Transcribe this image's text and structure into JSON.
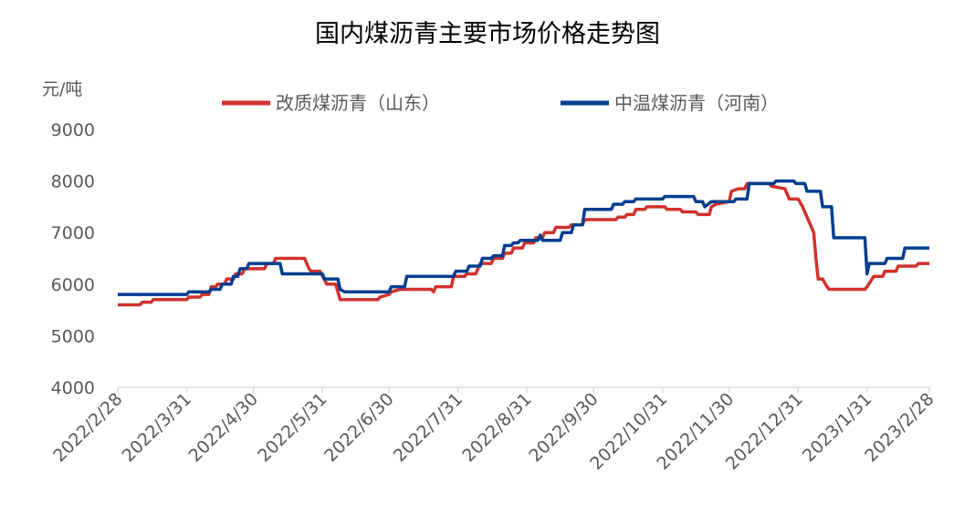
{
  "chart_data": {
    "type": "line",
    "title": "国内煤沥青主要市场价格走势图",
    "ylabel": "元/吨",
    "ylim": [
      4000,
      9000
    ],
    "yticks": [
      "4000",
      "5000",
      "6000",
      "7000",
      "8000",
      "9000"
    ],
    "xlim": [
      "2022-02-28",
      "2023-02-28"
    ],
    "xticks": [
      {
        "date": "2022-02-28",
        "label": "2022/2/28"
      },
      {
        "date": "2022-03-31",
        "label": "2022/3/31"
      },
      {
        "date": "2022-04-30",
        "label": "2022/4/30"
      },
      {
        "date": "2022-05-31",
        "label": "2022/5/31"
      },
      {
        "date": "2022-06-30",
        "label": "2022/6/30"
      },
      {
        "date": "2022-07-31",
        "label": "2022/7/31"
      },
      {
        "date": "2022-08-31",
        "label": "2022/8/31"
      },
      {
        "date": "2022-09-30",
        "label": "2022/9/30"
      },
      {
        "date": "2022-10-31",
        "label": "2022/10/31"
      },
      {
        "date": "2022-11-30",
        "label": "2022/11/30"
      },
      {
        "date": "2022-12-31",
        "label": "2022/12/31"
      },
      {
        "date": "2023-01-31",
        "label": "2023/1/31"
      },
      {
        "date": "2023-02-28",
        "label": "2023/2/28"
      }
    ],
    "grid": false,
    "legend_position": "top",
    "series": [
      {
        "name": "改质煤沥青（山东）",
        "color": "#d0312d",
        "points": [
          [
            "2022-02-28",
            5600
          ],
          [
            "2022-03-10",
            5600
          ],
          [
            "2022-03-11",
            5650
          ],
          [
            "2022-03-15",
            5650
          ],
          [
            "2022-03-16",
            5700
          ],
          [
            "2022-03-31",
            5700
          ],
          [
            "2022-04-01",
            5750
          ],
          [
            "2022-04-06",
            5750
          ],
          [
            "2022-04-07",
            5800
          ],
          [
            "2022-04-10",
            5800
          ],
          [
            "2022-04-11",
            5950
          ],
          [
            "2022-04-13",
            5950
          ],
          [
            "2022-04-14",
            6000
          ],
          [
            "2022-04-17",
            6000
          ],
          [
            "2022-04-18",
            6100
          ],
          [
            "2022-04-21",
            6100
          ],
          [
            "2022-04-22",
            6200
          ],
          [
            "2022-04-25",
            6200
          ],
          [
            "2022-04-26",
            6300
          ],
          [
            "2022-05-05",
            6300
          ],
          [
            "2022-05-06",
            6400
          ],
          [
            "2022-05-09",
            6400
          ],
          [
            "2022-05-10",
            6500
          ],
          [
            "2022-05-23",
            6500
          ],
          [
            "2022-05-24",
            6400
          ],
          [
            "2022-05-25",
            6300
          ],
          [
            "2022-05-26",
            6250
          ],
          [
            "2022-05-30",
            6250
          ],
          [
            "2022-06-02",
            6000
          ],
          [
            "2022-06-06",
            6000
          ],
          [
            "2022-06-07",
            5850
          ],
          [
            "2022-06-08",
            5700
          ],
          [
            "2022-06-25",
            5700
          ],
          [
            "2022-06-26",
            5750
          ],
          [
            "2022-06-30",
            5800
          ],
          [
            "2022-07-01",
            5850
          ],
          [
            "2022-07-05",
            5900
          ],
          [
            "2022-07-19",
            5900
          ],
          [
            "2022-07-20",
            5850
          ],
          [
            "2022-07-21",
            5950
          ],
          [
            "2022-07-28",
            5950
          ],
          [
            "2022-07-29",
            6150
          ],
          [
            "2022-08-03",
            6150
          ],
          [
            "2022-08-04",
            6200
          ],
          [
            "2022-08-08",
            6200
          ],
          [
            "2022-08-09",
            6300
          ],
          [
            "2022-08-10",
            6400
          ],
          [
            "2022-08-15",
            6400
          ],
          [
            "2022-08-16",
            6500
          ],
          [
            "2022-08-20",
            6500
          ],
          [
            "2022-08-21",
            6600
          ],
          [
            "2022-08-24",
            6600
          ],
          [
            "2022-08-25",
            6700
          ],
          [
            "2022-08-29",
            6700
          ],
          [
            "2022-08-30",
            6800
          ],
          [
            "2022-09-03",
            6800
          ],
          [
            "2022-09-04",
            6900
          ],
          [
            "2022-09-07",
            6900
          ],
          [
            "2022-09-08",
            7000
          ],
          [
            "2022-09-12",
            7000
          ],
          [
            "2022-09-13",
            7100
          ],
          [
            "2022-09-19",
            7100
          ],
          [
            "2022-09-20",
            7150
          ],
          [
            "2022-09-25",
            7150
          ],
          [
            "2022-09-26",
            7250
          ],
          [
            "2022-10-10",
            7250
          ],
          [
            "2022-10-11",
            7300
          ],
          [
            "2022-10-14",
            7300
          ],
          [
            "2022-10-15",
            7350
          ],
          [
            "2022-10-18",
            7350
          ],
          [
            "2022-10-19",
            7450
          ],
          [
            "2022-10-23",
            7450
          ],
          [
            "2022-10-24",
            7500
          ],
          [
            "2022-11-01",
            7500
          ],
          [
            "2022-11-02",
            7450
          ],
          [
            "2022-11-08",
            7450
          ],
          [
            "2022-11-09",
            7400
          ],
          [
            "2022-11-15",
            7400
          ],
          [
            "2022-11-16",
            7350
          ],
          [
            "2022-11-21",
            7350
          ],
          [
            "2022-11-22",
            7500
          ],
          [
            "2022-11-24",
            7550
          ],
          [
            "2022-11-30",
            7600
          ],
          [
            "2022-12-01",
            7800
          ],
          [
            "2022-12-04",
            7850
          ],
          [
            "2022-12-07",
            7850
          ],
          [
            "2022-12-08",
            7950
          ],
          [
            "2022-12-18",
            7950
          ],
          [
            "2022-12-19",
            7900
          ],
          [
            "2022-12-25",
            7850
          ],
          [
            "2022-12-27",
            7650
          ],
          [
            "2022-12-31",
            7650
          ],
          [
            "2023-01-02",
            7500
          ],
          [
            "2023-01-04",
            7300
          ],
          [
            "2023-01-07",
            7000
          ],
          [
            "2023-01-08",
            6500
          ],
          [
            "2023-01-09",
            6100
          ],
          [
            "2023-01-11",
            6100
          ],
          [
            "2023-01-13",
            5950
          ],
          [
            "2023-01-14",
            5900
          ],
          [
            "2023-01-30",
            5900
          ],
          [
            "2023-01-31",
            5950
          ],
          [
            "2023-02-03",
            6150
          ],
          [
            "2023-02-07",
            6150
          ],
          [
            "2023-02-08",
            6250
          ],
          [
            "2023-02-13",
            6250
          ],
          [
            "2023-02-14",
            6350
          ],
          [
            "2023-02-22",
            6350
          ],
          [
            "2023-02-23",
            6400
          ],
          [
            "2023-02-28",
            6400
          ]
        ]
      },
      {
        "name": "中温煤沥青（河南）",
        "color": "#003d8f",
        "points": [
          [
            "2022-02-28",
            5800
          ],
          [
            "2022-03-31",
            5800
          ],
          [
            "2022-04-01",
            5850
          ],
          [
            "2022-04-10",
            5850
          ],
          [
            "2022-04-11",
            5900
          ],
          [
            "2022-04-15",
            5900
          ],
          [
            "2022-04-16",
            6000
          ],
          [
            "2022-04-20",
            6000
          ],
          [
            "2022-04-21",
            6150
          ],
          [
            "2022-04-23",
            6150
          ],
          [
            "2022-04-24",
            6300
          ],
          [
            "2022-04-27",
            6300
          ],
          [
            "2022-04-28",
            6400
          ],
          [
            "2022-05-12",
            6400
          ],
          [
            "2022-05-13",
            6200
          ],
          [
            "2022-05-31",
            6200
          ],
          [
            "2022-06-01",
            6100
          ],
          [
            "2022-06-07",
            6100
          ],
          [
            "2022-06-08",
            5900
          ],
          [
            "2022-06-10",
            5850
          ],
          [
            "2022-06-30",
            5850
          ],
          [
            "2022-07-01",
            5950
          ],
          [
            "2022-07-07",
            5950
          ],
          [
            "2022-07-08",
            6150
          ],
          [
            "2022-07-29",
            6150
          ],
          [
            "2022-07-30",
            6250
          ],
          [
            "2022-08-04",
            6250
          ],
          [
            "2022-08-05",
            6350
          ],
          [
            "2022-08-10",
            6350
          ],
          [
            "2022-08-11",
            6500
          ],
          [
            "2022-08-15",
            6500
          ],
          [
            "2022-08-16",
            6550
          ],
          [
            "2022-08-20",
            6550
          ],
          [
            "2022-08-21",
            6750
          ],
          [
            "2022-08-24",
            6750
          ],
          [
            "2022-08-25",
            6800
          ],
          [
            "2022-08-27",
            6800
          ],
          [
            "2022-08-28",
            6850
          ],
          [
            "2022-09-05",
            6850
          ],
          [
            "2022-09-06",
            6950
          ],
          [
            "2022-09-07",
            6850
          ],
          [
            "2022-09-15",
            6850
          ],
          [
            "2022-09-16",
            7000
          ],
          [
            "2022-09-20",
            7000
          ],
          [
            "2022-09-21",
            7150
          ],
          [
            "2022-09-25",
            7150
          ],
          [
            "2022-09-26",
            7450
          ],
          [
            "2022-10-08",
            7450
          ],
          [
            "2022-10-09",
            7550
          ],
          [
            "2022-10-13",
            7550
          ],
          [
            "2022-10-14",
            7600
          ],
          [
            "2022-10-18",
            7600
          ],
          [
            "2022-10-19",
            7650
          ],
          [
            "2022-10-31",
            7650
          ],
          [
            "2022-11-01",
            7700
          ],
          [
            "2022-11-14",
            7700
          ],
          [
            "2022-11-15",
            7600
          ],
          [
            "2022-11-18",
            7600
          ],
          [
            "2022-11-19",
            7500
          ],
          [
            "2022-11-22",
            7600
          ],
          [
            "2022-12-02",
            7600
          ],
          [
            "2022-12-03",
            7650
          ],
          [
            "2022-12-08",
            7650
          ],
          [
            "2022-12-09",
            7950
          ],
          [
            "2022-12-20",
            7950
          ],
          [
            "2022-12-21",
            8000
          ],
          [
            "2022-12-29",
            8000
          ],
          [
            "2022-12-30",
            7950
          ],
          [
            "2023-01-03",
            7950
          ],
          [
            "2023-01-04",
            7800
          ],
          [
            "2023-01-10",
            7800
          ],
          [
            "2023-01-11",
            7500
          ],
          [
            "2023-01-15",
            7500
          ],
          [
            "2023-01-16",
            6900
          ],
          [
            "2023-01-30",
            6900
          ],
          [
            "2023-01-31",
            6200
          ],
          [
            "2023-02-01",
            6400
          ],
          [
            "2023-02-08",
            6400
          ],
          [
            "2023-02-09",
            6500
          ],
          [
            "2023-02-16",
            6500
          ],
          [
            "2023-02-17",
            6700
          ],
          [
            "2023-02-28",
            6700
          ]
        ]
      }
    ]
  }
}
